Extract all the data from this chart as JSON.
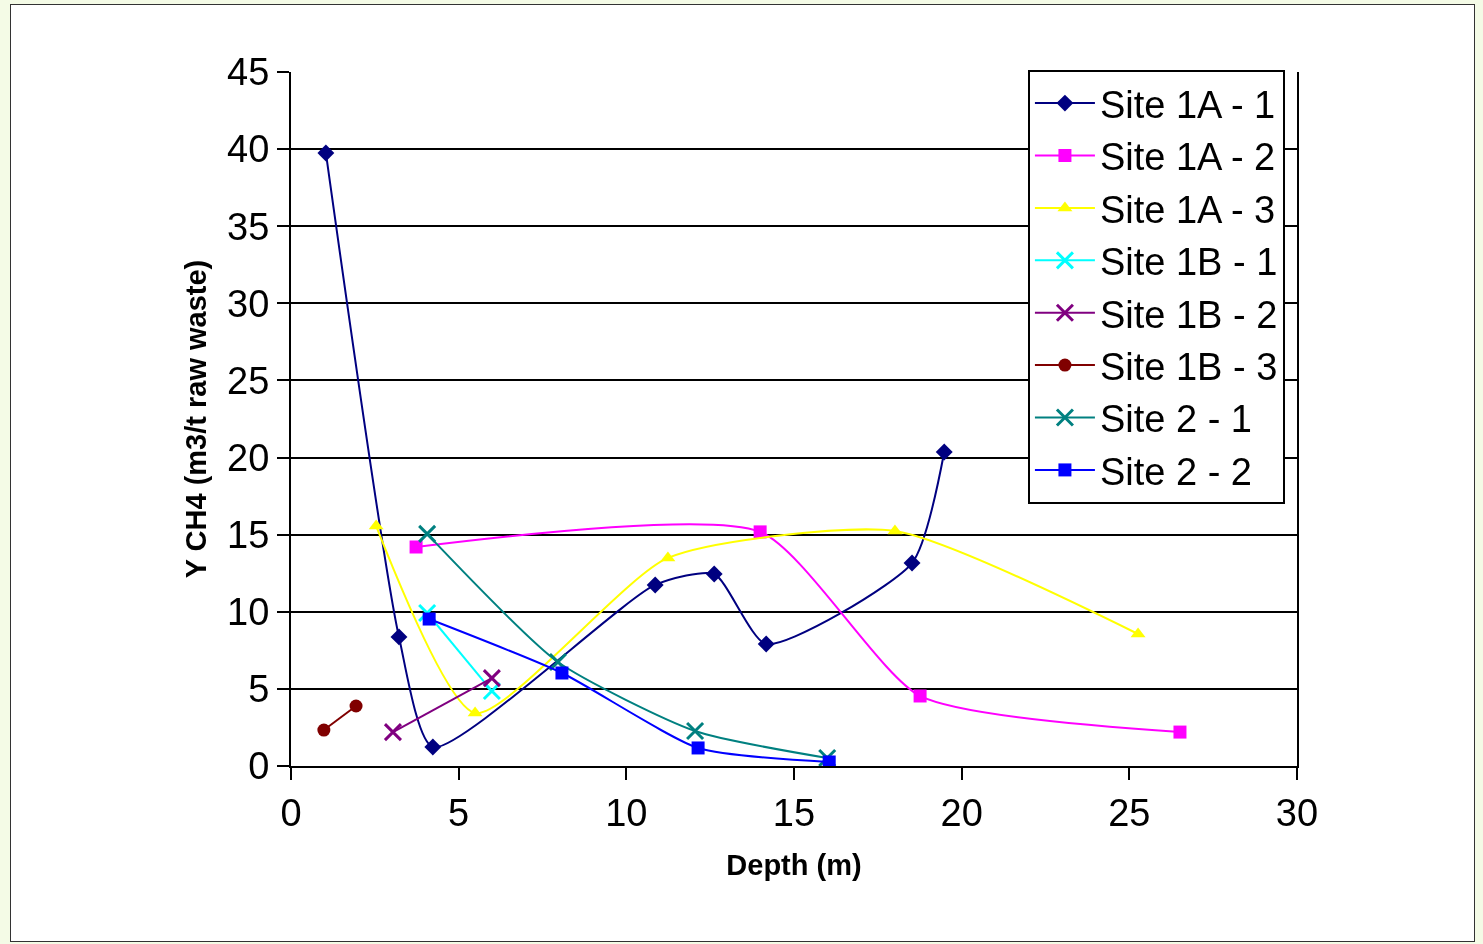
{
  "chart_data": {
    "type": "line",
    "xlabel": "Depth (m)",
    "ylabel": "Y CH4 (m3/t raw waste)",
    "xlim": [
      0,
      30
    ],
    "xticks": [
      0,
      5,
      10,
      15,
      20,
      25,
      30
    ],
    "ylim": [
      0,
      45
    ],
    "yticks": [
      0,
      5,
      10,
      15,
      20,
      25,
      30,
      35,
      40,
      45
    ],
    "grid": "y",
    "legend": "top right",
    "line_style": "solid",
    "series": [
      {
        "name": "Site 1A - 1",
        "color": "#000080",
        "marker": "diamond",
        "x": [
          1.04,
          3.22,
          4.23,
          10.86,
          12.62,
          14.17,
          18.52,
          19.48
        ],
        "values": [
          39.75,
          8.37,
          1.23,
          11.74,
          12.45,
          7.91,
          13.16,
          20.36
        ]
      },
      {
        "name": "Site 1A - 2",
        "color": "#ff00ff",
        "marker": "square",
        "x": [
          3.73,
          13.99,
          18.76,
          26.51
        ],
        "values": [
          14.2,
          15.18,
          4.54,
          2.2
        ]
      },
      {
        "name": "Site 1A - 3",
        "color": "#ffff00",
        "marker": "triangle",
        "x": [
          2.54,
          5.49,
          11.24,
          18.01,
          25.26
        ],
        "values": [
          15.56,
          3.44,
          13.49,
          15.24,
          8.56
        ]
      },
      {
        "name": "Site 1B - 1",
        "color": "#00ffff",
        "marker": "cross",
        "x": [
          4.06,
          5.99
        ],
        "values": [
          9.92,
          4.86
        ]
      },
      {
        "name": "Site 1B - 2",
        "color": "#800080",
        "marker": "cross",
        "x": [
          3.04,
          5.99
        ],
        "values": [
          2.2,
          5.7
        ]
      },
      {
        "name": "Site 1B - 3",
        "color": "#800000",
        "marker": "circle",
        "x": [
          0.98,
          1.94
        ],
        "values": [
          2.33,
          3.89
        ]
      },
      {
        "name": "Site 2 - 1",
        "color": "#008080",
        "marker": "cross",
        "x": [
          4.06,
          7.96,
          12.05,
          15.99
        ],
        "values": [
          15.05,
          6.74,
          2.27,
          0.52
        ]
      },
      {
        "name": "Site 2 - 2",
        "color": "#0000ff",
        "marker": "square",
        "x": [
          4.12,
          8.08,
          12.14,
          16.05
        ],
        "values": [
          9.53,
          6.03,
          1.17,
          0.26
        ]
      }
    ]
  }
}
